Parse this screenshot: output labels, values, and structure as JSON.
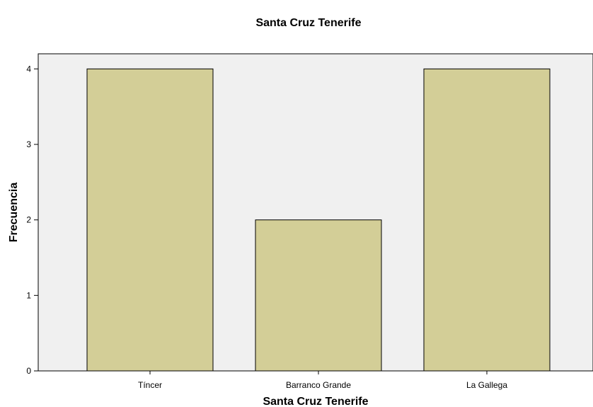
{
  "chart_data": {
    "type": "bar",
    "title": "Santa Cruz Tenerife",
    "xlabel": "Santa Cruz Tenerife",
    "ylabel": "Frecuencia",
    "categories": [
      "Tíncer",
      "Barranco Grande",
      "La Gallega"
    ],
    "values": [
      4,
      2,
      4
    ],
    "ylim": [
      0,
      4.2
    ],
    "yticks": [
      0,
      1,
      2,
      3,
      4
    ],
    "grid": false,
    "legend": "none",
    "colors": {
      "bar_fill": "#d3ce97",
      "bar_stroke": "#000000",
      "plot_background": "#f0f0f0",
      "page_background": "#ffffff"
    }
  }
}
